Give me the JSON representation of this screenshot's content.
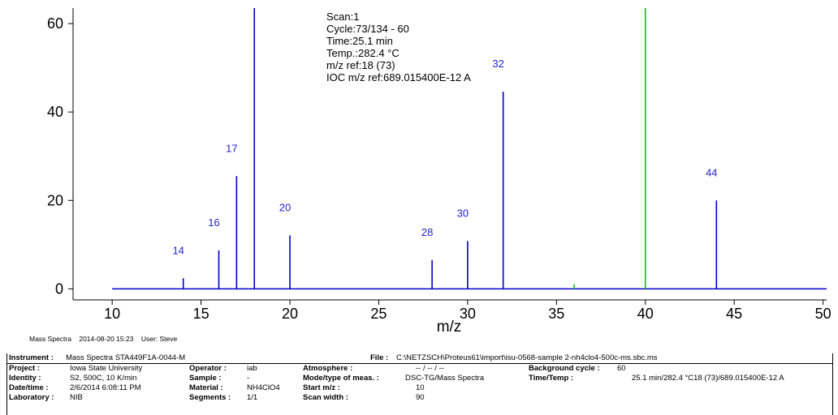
{
  "chart_data": {
    "type": "bar",
    "title": "",
    "xlabel": "m/z",
    "ylabel": "",
    "xlim": [
      7.8,
      50.2
    ],
    "ylim": [
      -2.5,
      63.5
    ],
    "x_ticks": [
      10,
      15,
      20,
      25,
      30,
      35,
      40,
      45,
      50
    ],
    "y_ticks": [
      0,
      20,
      40,
      60
    ],
    "grid": false,
    "series": [
      {
        "color": "#0000cc",
        "points": [
          {
            "x": 14,
            "y": 2.4,
            "label": "14"
          },
          {
            "x": 16,
            "y": 8.7,
            "label": "16"
          },
          {
            "x": 17,
            "y": 25.5,
            "label": "17"
          },
          {
            "x": 18,
            "y": 63.5,
            "label": ""
          },
          {
            "x": 20,
            "y": 12.1,
            "label": "20"
          },
          {
            "x": 28,
            "y": 6.5,
            "label": "28"
          },
          {
            "x": 30,
            "y": 10.8,
            "label": "30"
          },
          {
            "x": 32,
            "y": 44.6,
            "label": "32"
          },
          {
            "x": 44,
            "y": 20.0,
            "label": "44"
          }
        ]
      },
      {
        "color": "#00cc00",
        "points": [
          {
            "x": 36,
            "y": 1.0
          },
          {
            "x": 40,
            "y": 63.5
          }
        ]
      }
    ],
    "baseline_color": "#0000cc",
    "annotation": [
      "Scan:1",
      "Cycle:73/134 - 60",
      "Time:25.1 min",
      "Temp.:282.4 °C",
      "m/z ref:18 (73)",
      "IOC m/z ref:689.015400E-12 A"
    ]
  },
  "footer": {
    "instrument_short": "Mass Spectra",
    "datetime": "2014-08-20 15:23",
    "user": "User: Steve"
  },
  "table": {
    "instrument_label": "Instrument :",
    "instrument_value": "Mass Spectra STA449F1A-0044-M",
    "file_label": "File :",
    "file_value": "C:\\NETZSCH\\Proteus61\\import\\isu-0568-sample 2-nh4clo4-500c-ms.sbc.ms",
    "project_label": "Project :",
    "project_value": "Iowa State University",
    "identity_label": "Identity :",
    "identity_value": "S2, 500C, 10 K/min",
    "datetime_label": "Date/time :",
    "datetime_value": "2/6/2014 6:08:11 PM",
    "laboratory_label": "Laboratory :",
    "laboratory_value": "NIB",
    "operator_label": "Operator :",
    "operator_value": "iab",
    "sample_label": "Sample :",
    "sample_value": "-",
    "material_label": "Material :",
    "material_value": "NH4ClO4",
    "segments_label": "Segments :",
    "segments_value": "1/1",
    "atmosphere_label": "Atmosphere :",
    "atmosphere_value": "-- / -- / --",
    "mode_label": "Mode/type of meas. :",
    "mode_value": "DSC-TG/Mass Spectra",
    "start_mz_label": "Start m/z :",
    "start_mz_value": "10",
    "scan_width_label": "Scan width :",
    "scan_width_value": "90",
    "background_label": "Background cycle :",
    "background_value": "60",
    "timetemp_label": "Time/Temp :",
    "timetemp_value": "25.1 min/282.4 °C18 (73)/689.015400E-12 A"
  }
}
